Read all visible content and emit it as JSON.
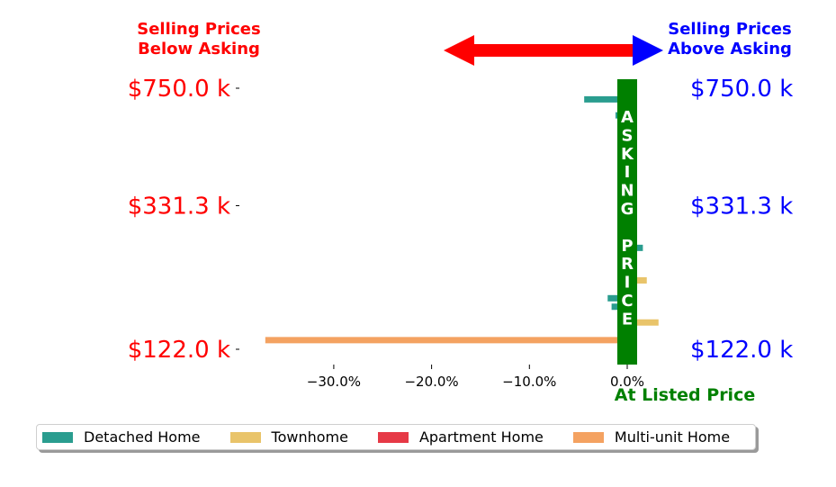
{
  "header": {
    "below_line1": "Selling Prices",
    "below_line2": "Below Asking",
    "above_line1": "Selling Prices",
    "above_line2": "Above Asking"
  },
  "center_label": "ASKING PRICE",
  "at_listed_label": "At Listed Price",
  "colors": {
    "below": "#ff0000",
    "above": "#0000ff",
    "asking": "#008000",
    "arrow": "#ff0000",
    "arrow_head_right": "#0000ff"
  },
  "chart_data": {
    "type": "bar",
    "orientation": "horizontal",
    "x_tick_labels": [
      "−30.0%",
      "−20.0%",
      "−10.0%",
      "0.0%"
    ],
    "x_ticks": [
      -30,
      -20,
      -10,
      0
    ],
    "xlim": [
      -38.5,
      4.5
    ],
    "ylim": [
      80,
      790
    ],
    "y_scale": "log",
    "y_ticks": [
      122.0,
      331.3,
      750.0
    ],
    "y_tick_labels": [
      "$122.0 k",
      "$331.3 k",
      "$750.0 k"
    ],
    "series": [
      {
        "name": "Detached Home",
        "color": "#2a9d8f",
        "points": [
          {
            "price": 694,
            "pct": -4.4
          },
          {
            "price": 621,
            "pct": -1.2
          },
          {
            "price": 582,
            "pct": -1.0
          },
          {
            "price": 540,
            "pct": 0.6
          },
          {
            "price": 505,
            "pct": 0.5
          },
          {
            "price": 470,
            "pct": 0.4
          },
          {
            "price": 437,
            "pct": 0.3
          },
          {
            "price": 405,
            "pct": 0.3
          },
          {
            "price": 375,
            "pct": 0.2
          },
          {
            "price": 345,
            "pct": 0.2
          },
          {
            "price": 318,
            "pct": 0.2
          },
          {
            "price": 292,
            "pct": 0.3
          },
          {
            "price": 269,
            "pct": 0.7
          },
          {
            "price": 247,
            "pct": 1.6
          },
          {
            "price": 227,
            "pct": 0.6
          },
          {
            "price": 208,
            "pct": 0.2
          },
          {
            "price": 190,
            "pct": 0.6
          },
          {
            "price": 174,
            "pct": -2.0
          },
          {
            "price": 164,
            "pct": -1.6
          }
        ]
      },
      {
        "name": "Townhome",
        "color": "#e9c46a",
        "points": [
          {
            "price": 197,
            "pct": 2.0
          },
          {
            "price": 147,
            "pct": 3.2
          }
        ]
      },
      {
        "name": "Apartment Home",
        "color": "#e63946",
        "points": [
          {
            "price": 157,
            "pct": 0.5
          },
          {
            "price": 121,
            "pct": 0.5
          }
        ]
      },
      {
        "name": "Multi-unit Home",
        "color": "#f4a261",
        "points": [
          {
            "price": 130,
            "pct": -37.0
          }
        ]
      }
    ]
  }
}
